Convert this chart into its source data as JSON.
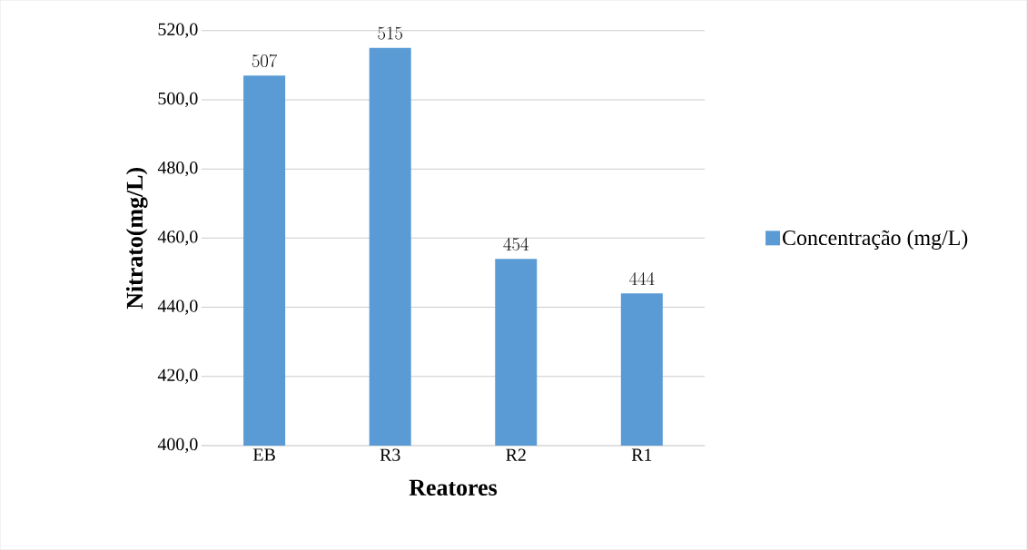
{
  "chart_data": {
    "type": "bar",
    "xlabel": "Reatores",
    "ylabel": "Nitrato(mg/L)",
    "categories": [
      "EB",
      "R3",
      "R2",
      "R1"
    ],
    "series": [
      {
        "name": "Concentração (mg/L)",
        "color": "#5b9bd5",
        "values": [
          507,
          515,
          454,
          444
        ]
      }
    ],
    "ylim": [
      400,
      520
    ],
    "yticks": [
      {
        "value": 400,
        "label": "400,0"
      },
      {
        "value": 420,
        "label": "420,0"
      },
      {
        "value": 440,
        "label": "440,0"
      },
      {
        "value": 460,
        "label": "460,0"
      },
      {
        "value": 480,
        "label": "480,0"
      },
      {
        "value": 500,
        "label": "500,0"
      },
      {
        "value": 520,
        "label": "520,0"
      }
    ],
    "grid": "y",
    "legend": "right",
    "data_labels": true
  }
}
